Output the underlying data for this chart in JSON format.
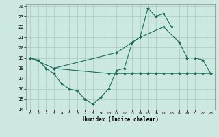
{
  "xlabel": "Humidex (Indice chaleur)",
  "bg_color": "#cde8e0",
  "grid_color": "#aacfc7",
  "line_color": "#1a6b5a",
  "xlim": [
    -0.5,
    23.5
  ],
  "ylim": [
    14,
    24.2
  ],
  "yticks": [
    14,
    15,
    16,
    17,
    18,
    19,
    20,
    21,
    22,
    23,
    24
  ],
  "xticks": [
    0,
    1,
    2,
    3,
    4,
    5,
    6,
    7,
    8,
    9,
    10,
    11,
    12,
    13,
    14,
    15,
    16,
    17,
    18,
    19,
    20,
    21,
    22,
    23
  ],
  "series1_x": [
    0,
    1,
    2,
    3,
    4,
    5,
    6,
    7,
    8,
    9,
    10,
    11,
    12,
    13,
    14,
    15,
    16,
    17,
    18
  ],
  "series1_y": [
    19,
    18.8,
    18,
    17.5,
    16.5,
    16.0,
    15.8,
    15.0,
    14.5,
    15.2,
    16.0,
    17.8,
    18.0,
    20.5,
    21.0,
    23.8,
    23.0,
    23.3,
    22.0
  ],
  "series2_x": [
    0,
    3,
    11,
    13,
    14,
    17,
    19,
    20,
    21,
    22,
    23
  ],
  "series2_y": [
    19,
    18,
    19.5,
    20.5,
    21.0,
    22.0,
    20.5,
    19.0,
    19.0,
    18.8,
    17.5
  ],
  "series3_x": [
    3,
    10,
    11,
    12,
    13,
    14,
    15,
    16,
    17,
    18,
    19,
    20,
    21,
    22,
    23
  ],
  "series3_y": [
    18,
    17.5,
    17.5,
    17.5,
    17.5,
    17.5,
    17.5,
    17.5,
    17.5,
    17.5,
    17.5,
    17.5,
    17.5,
    17.5,
    17.5
  ]
}
